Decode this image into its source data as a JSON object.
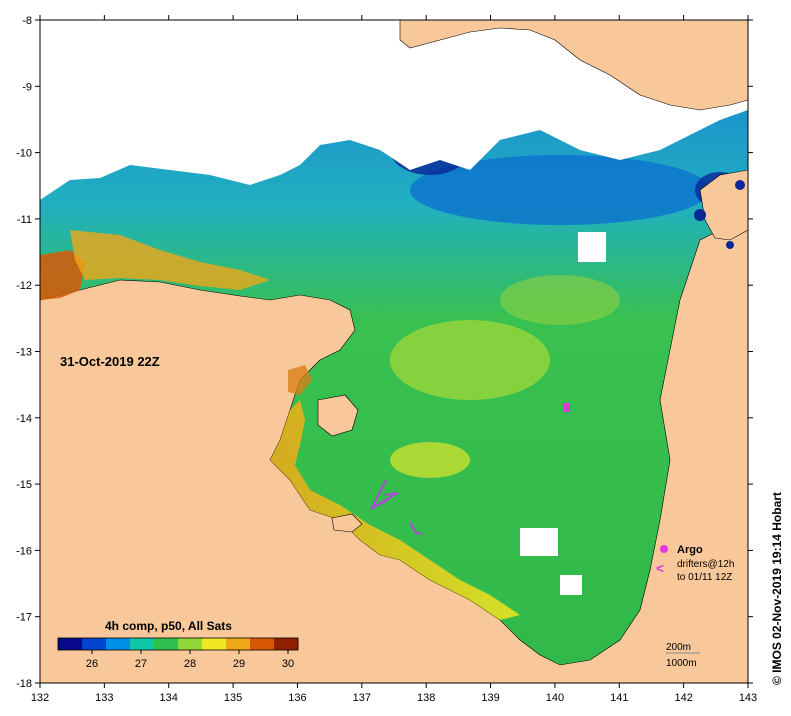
{
  "map": {
    "date_label": "31-Oct-2019 22Z",
    "credit": "© IMOS 02-Nov-2019 19:14 Hobart",
    "colors": {
      "land": "#f8c89a",
      "cloud": "#ffffff",
      "coast": "#000000",
      "argo": "#e238e2",
      "drifter": "#b04ad8"
    }
  },
  "axes": {
    "x_ticks": [
      "132",
      "133",
      "134",
      "135",
      "136",
      "137",
      "138",
      "139",
      "140",
      "141",
      "142",
      "143"
    ],
    "y_ticks": [
      "-8",
      "-9",
      "-10",
      "-11",
      "-12",
      "-13",
      "-14",
      "-15",
      "-16",
      "-17",
      "-18"
    ]
  },
  "colorbar": {
    "title": "4h comp, p50, All Sats",
    "ticks": [
      "26",
      "27",
      "28",
      "29",
      "30"
    ],
    "stops": [
      "#08088a",
      "#0044d0",
      "#0090e8",
      "#10c8a8",
      "#30c050",
      "#90d838",
      "#f0e820",
      "#f0a818",
      "#d85808",
      "#902000"
    ]
  },
  "legend": {
    "argo_label": "Argo",
    "drifter_label_1": "drifters@12h",
    "drifter_label_2": "to 01/11 12Z"
  },
  "scale": {
    "label_200m": "200m",
    "label_1000m": "1000m"
  }
}
